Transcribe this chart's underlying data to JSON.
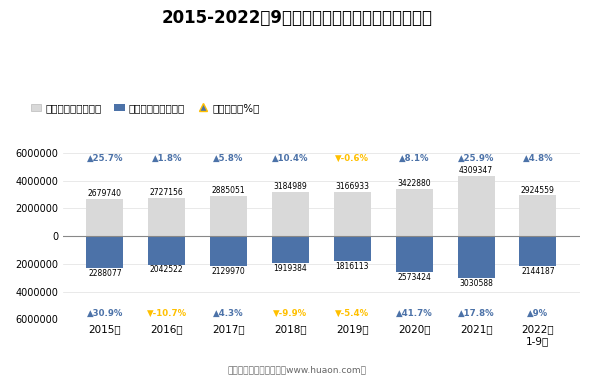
{
  "title": "2015-2022年9月郑州新郑综合保税区进、出口额",
  "categories": [
    "2015年",
    "2016年",
    "2017年",
    "2018年",
    "2019年",
    "2020年",
    "2021年",
    "2022年\n1-9月"
  ],
  "export_values": [
    2679740,
    2727156,
    2885051,
    3184989,
    3166933,
    3422880,
    4309347,
    2924559
  ],
  "import_values": [
    2288077,
    2042522,
    2129970,
    1919384,
    1816113,
    2573424,
    3030588,
    2144187
  ],
  "export_growth": [
    25.7,
    1.8,
    5.8,
    10.4,
    -0.6,
    8.1,
    25.9,
    4.8
  ],
  "import_growth": [
    30.9,
    -10.7,
    4.3,
    -9.9,
    -5.4,
    41.7,
    17.8,
    9
  ],
  "export_color": "#d9d9d9",
  "import_color": "#4c72a8",
  "growth_up_color": "#4c72a8",
  "growth_down_color": "#ffc000",
  "ylim": [
    -6000000,
    6500000
  ],
  "yticks": [
    -6000000,
    -4000000,
    -2000000,
    0,
    2000000,
    4000000,
    6000000
  ],
  "bg_color": "#ffffff",
  "footer": "制图：华经产业研究院（www.huaon.com）",
  "legend_export": "出口总额（万美元）",
  "legend_import": "进口总额（万美元）",
  "legend_growth": "同比增长（%）"
}
